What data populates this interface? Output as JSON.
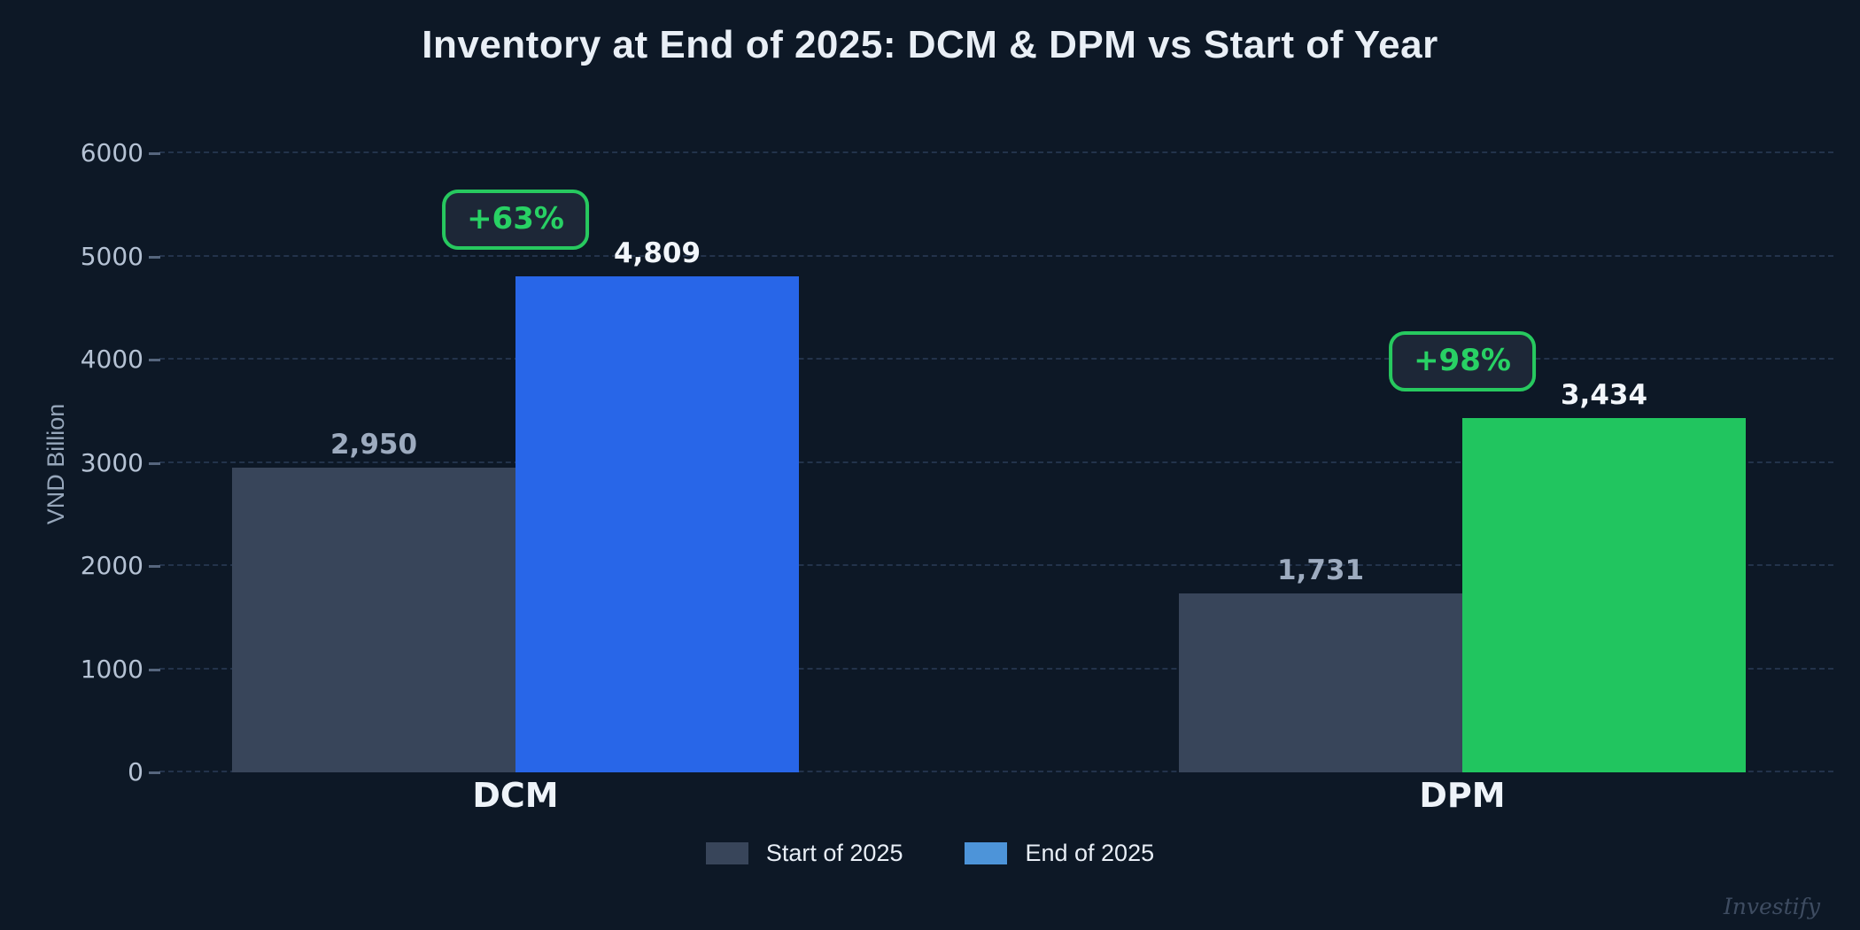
{
  "watermark": "Investify",
  "colors": {
    "background": "#0d1826",
    "title_text": "#e9eff6",
    "grid": "#2b3c58",
    "tick_text": "#b5c2d4",
    "axis_title_text": "#97a7bb",
    "start_bar": "#38455a",
    "dcm_end_bar": "#2866e8",
    "dpm_end_bar": "#21c55f",
    "badge_green": "#27c95f",
    "start_value_text": "#9dabbf",
    "end_value_text": "#f2f6fb"
  },
  "chart_data": {
    "type": "bar",
    "title": "Inventory at End of 2025: DCM & DPM vs Start of Year",
    "xlabel": "",
    "ylabel": "VND Billion",
    "ylim": [
      0,
      6000
    ],
    "yticks": [
      0,
      1000,
      2000,
      3000,
      4000,
      5000,
      6000
    ],
    "grid": "horizontal-dashed",
    "legend_position": "bottom-center",
    "categories": [
      "DCM",
      "DPM"
    ],
    "series": [
      {
        "name": "Start of 2025",
        "values": [
          2950,
          1731
        ],
        "labels": [
          "2,950",
          "1,731"
        ],
        "colors": [
          "#38455a",
          "#38455a"
        ]
      },
      {
        "name": "End of 2025",
        "values": [
          4809,
          3434
        ],
        "labels": [
          "4,809",
          "3,434"
        ],
        "colors": [
          "#2866e8",
          "#21c55f"
        ]
      }
    ],
    "growth_badges": [
      "+63%",
      "+98%"
    ],
    "legend": {
      "items": [
        {
          "label": "Start of 2025",
          "color": "#38455a"
        },
        {
          "label": "End of 2025",
          "color": "#4d94d9"
        }
      ]
    }
  }
}
